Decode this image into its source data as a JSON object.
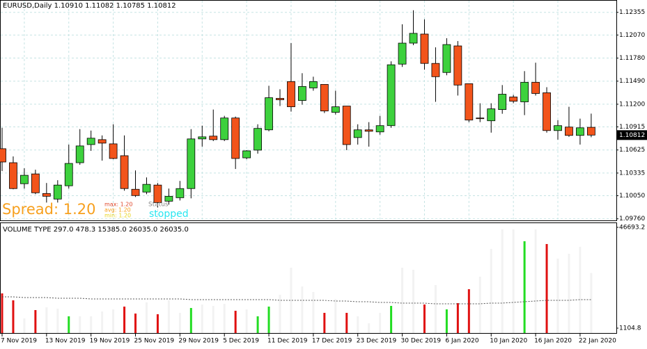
{
  "chart_data": [
    {
      "type": "candlestick",
      "header": "EURUSD,Daily  1.10910 1.11082 1.10785 1.10812",
      "categories": [
        "7 Nov 2019",
        null,
        null,
        null,
        "13 Nov 2019",
        null,
        null,
        null,
        "19 Nov 2019",
        null,
        null,
        null,
        "25 Nov 2019",
        null,
        null,
        null,
        "29 Nov 2019",
        null,
        null,
        null,
        "5 Dec 2019",
        null,
        null,
        null,
        "11 Dec 2019",
        null,
        null,
        null,
        "17 Dec 2019",
        null,
        null,
        null,
        "23 Dec 2019",
        null,
        null,
        null,
        "30 Dec 2019",
        null,
        null,
        null,
        "6 Jan 2020",
        null,
        null,
        null,
        "10 Jan 2020",
        null,
        null,
        null,
        "16 Jan 2020",
        null,
        null,
        null,
        "22 Jan 2020",
        null
      ],
      "open": [
        1.10641,
        1.10465,
        1.10201,
        1.10324,
        1.10078,
        1.10008,
        1.10175,
        1.10465,
        1.10693,
        1.10755,
        1.10702,
        1.10553,
        1.10131,
        1.10096,
        1.10184,
        1.09981,
        1.10025,
        1.1014,
        1.10764,
        1.10799,
        1.10755,
        1.11027,
        1.10526,
        1.10623,
        1.10878,
        1.11274,
        1.11485,
        1.11247,
        1.11405,
        1.11449,
        1.11098,
        1.11177,
        1.10781,
        1.10878,
        1.10852,
        1.10931,
        1.11704,
        1.11968,
        1.12082,
        1.11713,
        1.11599,
        1.11933,
        1.11458,
        1.11027,
        1.10992,
        1.11133,
        1.11291,
        1.1123,
        1.11476,
        1.11344,
        1.10869,
        1.10913,
        1.10808,
        1.1091
      ],
      "high": [
        1.10904,
        1.10544,
        1.10395,
        1.10377,
        1.1021,
        1.10245,
        1.10693,
        1.10887,
        1.10869,
        1.10808,
        1.10948,
        1.10808,
        1.10368,
        1.1028,
        1.1021,
        1.1014,
        1.10236,
        1.10887,
        1.10931,
        1.11133,
        1.11054,
        1.11045,
        1.10623,
        1.10948,
        1.11432,
        1.11388,
        1.11968,
        1.1159,
        1.11546,
        1.11449,
        1.1137,
        1.11177,
        1.10948,
        1.10975,
        1.11054,
        1.11739,
        1.12205,
        1.12381,
        1.12267,
        1.11915,
        1.1203,
        1.11994,
        1.11458,
        1.11212,
        1.11212,
        1.11441,
        1.11318,
        1.11616,
        1.11722,
        1.11414,
        1.11001,
        1.11168,
        1.11019,
        1.11082
      ],
      "low": [
        1.10359,
        1.10131,
        1.1014,
        1.10069,
        1.09964,
        1.09964,
        1.1014,
        1.10439,
        1.10614,
        1.10491,
        1.10509,
        1.10113,
        1.10034,
        1.10069,
        1.09902,
        1.09938,
        1.0999,
        1.10017,
        1.10667,
        1.10737,
        1.10737,
        1.10386,
        1.10509,
        1.10579,
        1.1086,
        1.11177,
        1.11107,
        1.11194,
        1.1137,
        1.11089,
        1.11071,
        1.10623,
        1.10693,
        1.10667,
        1.10817,
        1.10904,
        1.11669,
        1.11942,
        1.11634,
        1.1123,
        1.11564,
        1.11309,
        1.10975,
        1.10975,
        1.10843,
        1.1108,
        1.11212,
        1.11063,
        1.11309,
        1.10843,
        1.10755,
        1.1079,
        1.10693,
        1.10785
      ],
      "close": [
        1.10474,
        1.1014,
        1.10307,
        1.10087,
        1.10043,
        1.10184,
        1.10456,
        1.10676,
        1.10773,
        1.10711,
        1.10518,
        1.1014,
        1.10052,
        1.10193,
        1.09964,
        1.10043,
        1.1014,
        1.10764,
        1.1079,
        1.10755,
        1.11027,
        1.10518,
        1.10614,
        1.10896,
        1.11282,
        1.11256,
        1.11168,
        1.11423,
        1.11485,
        1.11115,
        1.11168,
        1.10693,
        1.10878,
        1.1086,
        1.10931,
        1.11696,
        1.11968,
        1.12091,
        1.11713,
        1.11546,
        1.1195,
        1.11441,
        1.11001,
        1.11019,
        1.11142,
        1.11326,
        1.11238,
        1.11476,
        1.11335,
        1.10869,
        1.10931,
        1.10808,
        1.10904,
        1.10812
      ],
      "up_color": "#3dd13d",
      "down_color": "#f2541b",
      "ylim": [
        1.0974,
        1.1251
      ],
      "yticks": [
        {
          "value": 1.0976,
          "label": "1.09760"
        },
        {
          "value": 1.1005,
          "label": "1.10050"
        },
        1.10335,
        1.10625,
        1.10915,
        {
          "value": 1.112,
          "label": "1.11200"
        },
        {
          "value": 1.1149,
          "label": "1.11490"
        },
        {
          "value": 1.1178,
          "label": "1.11780"
        },
        {
          "value": 1.1207,
          "label": "1.12070"
        },
        1.12355
      ],
      "grid": true
    },
    {
      "type": "bar",
      "title": "VOLUME TYPE 297.0 478.3 15385.0 26035.0 26035.0",
      "values": [
        16825,
        13681,
        5507,
        9279,
        10537,
        9908,
        6450,
        6450,
        6450,
        8651,
        9594,
        10851,
        7707,
        12738,
        7393,
        13681,
        8022,
        10223,
        11795,
        11166,
        12109,
        8965,
        9594,
        6450,
        10851,
        16196,
        28458,
        19969,
        17454,
        8022,
        14310,
        8022,
        6450,
        3306,
        8022,
        11166,
        28458,
        27515,
        11795,
        20598,
        9594,
        12423,
        18711,
        24371,
        36947,
        45750,
        45750,
        40405,
        45750,
        39147,
        32545,
        34746,
        37890,
        26035
      ],
      "colors": [
        "#e01010",
        "#e01010",
        "#f2f2f2",
        "#e01010",
        "#f2f2f2",
        "#f2f2f2",
        "#22dd22",
        "#f2f2f2",
        "#f2f2f2",
        "#f2f2f2",
        "#f2f2f2",
        "#e01010",
        "#e01010",
        "#f2f2f2",
        "#e01010",
        "#f2f2f2",
        "#f2f2f2",
        "#22dd22",
        "#f2f2f2",
        "#f2f2f2",
        "#f2f2f2",
        "#e01010",
        "#f2f2f2",
        "#22dd22",
        "#22dd22",
        "#f2f2f2",
        "#f2f2f2",
        "#f2f2f2",
        "#f2f2f2",
        "#e01010",
        "#f2f2f2",
        "#e01010",
        "#f2f2f2",
        "#f2f2f2",
        "#f2f2f2",
        "#22dd22",
        "#f2f2f2",
        "#f2f2f2",
        "#e01010",
        "#f2f2f2",
        "#22dd22",
        "#e01010",
        "#e01010",
        "#f2f2f2",
        "#f2f2f2",
        "#f2f2f2",
        "#f2f2f2",
        "#22dd22",
        "#f2f2f2",
        "#e01010",
        "#f2f2f2",
        "#f2f2f2",
        "#f2f2f2",
        "#f2f2f2"
      ],
      "avg": [
        15253,
        15253,
        14938,
        14938,
        14938,
        14624,
        14624,
        14624,
        14310,
        14310,
        14310,
        14310,
        14310,
        14310,
        14310,
        14310,
        14310,
        13995,
        13995,
        13995,
        13995,
        13995,
        13995,
        13995,
        13995,
        13681,
        13681,
        13681,
        13681,
        13681,
        13367,
        13367,
        13052,
        13052,
        12738,
        12738,
        12423,
        12423,
        12423,
        12109,
        12109,
        12109,
        12109,
        12109,
        12423,
        12423,
        12738,
        13052,
        13367,
        13681,
        13681,
        13681,
        13995,
        13995
      ],
      "avg_color": "#555555",
      "ylim": [
        1104.8,
        46693.2
      ],
      "yticks": [
        1104.8,
        46693.2
      ]
    }
  ],
  "overlay": {
    "spread": "Spread: 1.20",
    "max": "max: 1.20",
    "avg": "avg: 1.20",
    "min": "min: 1.20",
    "status_label": "Status",
    "status": "stopped"
  }
}
